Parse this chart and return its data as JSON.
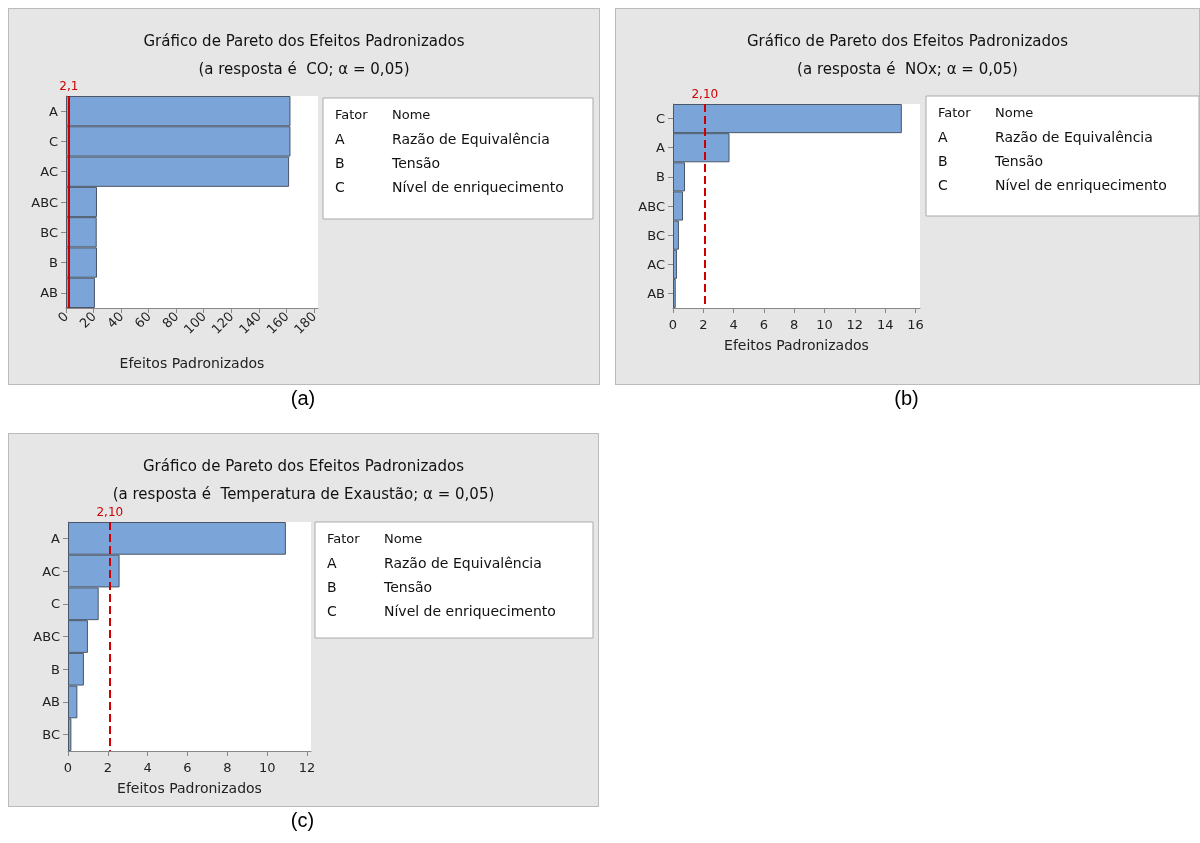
{
  "chart_data": [
    {
      "type": "bar",
      "orientation": "horizontal",
      "title": "Gráfico de Pareto dos Efeitos Padronizados",
      "subtitle": "(a resposta é  CO; α = 0,05)",
      "xlabel": "Efeitos Padronizados",
      "categories": [
        "A",
        "C",
        "AC",
        "ABC",
        "BC",
        "B",
        "AB"
      ],
      "values": [
        163,
        163,
        162,
        22.5,
        22.3,
        22.5,
        21
      ],
      "color": "#7ba5d9",
      "xlim": [
        0,
        183
      ],
      "xticks": [
        0,
        20,
        40,
        60,
        80,
        100,
        120,
        140,
        160,
        180
      ],
      "ref_lines": [
        {
          "axis": "x",
          "value": 2.1,
          "label": "2,1",
          "color": "#cc0000",
          "line_style": "solid"
        }
      ],
      "annotations": [
        "Fator",
        "Nome",
        "A",
        "Razão de Equivalência",
        "B",
        "Tensão",
        "C",
        "Nível de enriquecimento",
        "(a)"
      ]
    },
    {
      "type": "bar",
      "orientation": "horizontal",
      "title": "Gráfico de Pareto dos Efeitos Padronizados",
      "subtitle": "(a resposta é  NOx; α = 0,05)",
      "xlabel": "Efeitos Padronizados",
      "categories": [
        "C",
        "A",
        "B",
        "ABC",
        "BC",
        "AC",
        "AB"
      ],
      "values": [
        15.1,
        3.73,
        0.79,
        0.66,
        0.39,
        0.26,
        0.18
      ],
      "color": "#7ba5d9",
      "xlim": [
        0,
        16.3
      ],
      "xticks": [
        0,
        2,
        4,
        6,
        8,
        10,
        12,
        14,
        16
      ],
      "ref_lines": [
        {
          "axis": "x",
          "value": 2.1,
          "label": "2,10",
          "color": "#cc0000",
          "line_style": "dashed"
        }
      ],
      "annotations": [
        "Fator",
        "Nome",
        "A",
        "Razão de Equivalência",
        "B",
        "Tensão",
        "C",
        "Nível de enriquecimento",
        "(b)"
      ]
    },
    {
      "type": "bar",
      "orientation": "horizontal",
      "title": "Gráfico de Pareto dos Efeitos Padronizados",
      "subtitle": "(a resposta é  Temperatura de Exaustão; α = 0,05)",
      "xlabel": "Efeitos Padronizados",
      "categories": [
        "A",
        "AC",
        "C",
        "ABC",
        "B",
        "AB",
        "BC"
      ],
      "values": [
        10.94,
        2.59,
        1.54,
        1.0,
        0.8,
        0.47,
        0.17
      ],
      "color": "#7ba5d9",
      "xlim": [
        0,
        12.2
      ],
      "xticks": [
        0,
        2,
        4,
        6,
        8,
        10,
        12
      ],
      "ref_lines": [
        {
          "axis": "x",
          "value": 2.1,
          "label": "2,10",
          "color": "#cc0000",
          "line_style": "dashed"
        }
      ],
      "annotations": [
        "Fator",
        "Nome",
        "A",
        "Razão de Equivalência",
        "B",
        "Tensão",
        "C",
        "Nível de enriquecimento",
        "(c)"
      ]
    }
  ]
}
